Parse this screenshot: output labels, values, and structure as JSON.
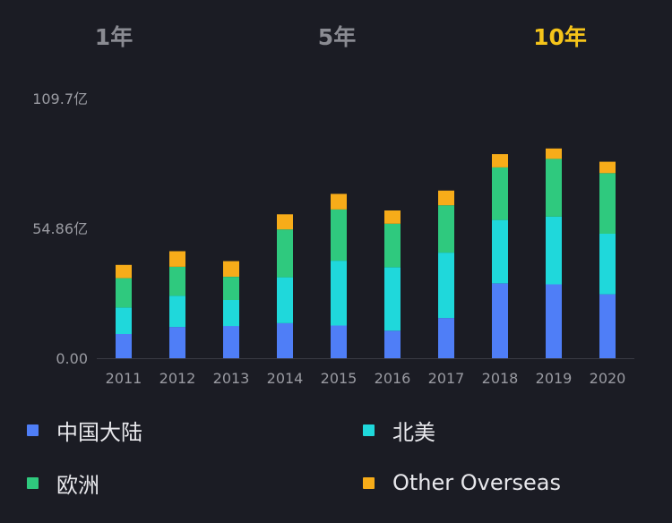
{
  "tabs": [
    {
      "label": "1年",
      "active": false
    },
    {
      "label": "5年",
      "active": false
    },
    {
      "label": "10年",
      "active": true
    }
  ],
  "chart_data": {
    "type": "bar",
    "stacked": true,
    "categories": [
      "2011",
      "2012",
      "2013",
      "2014",
      "2015",
      "2016",
      "2017",
      "2018",
      "2019",
      "2020"
    ],
    "y_ticks": [
      "109.7亿",
      "54.86亿",
      "0.00"
    ],
    "ylim": [
      0,
      109.7
    ],
    "unit": "亿",
    "grid": false,
    "legend_position": "bottom",
    "series": [
      {
        "name": "中国大陆",
        "color": "#4f7ef7",
        "values": [
          10.2,
          13.2,
          13.6,
          14.8,
          13.8,
          11.6,
          17.0,
          31.6,
          31.2,
          27.0
        ]
      },
      {
        "name": "北美",
        "color": "#1fd8db",
        "values": [
          11.2,
          13.2,
          11.0,
          19.4,
          27.4,
          26.8,
          27.6,
          26.8,
          28.6,
          25.6
        ]
      },
      {
        "name": "欧洲",
        "color": "#2fc97e",
        "values": [
          12.4,
          12.2,
          9.8,
          20.2,
          21.6,
          18.4,
          20.0,
          22.2,
          24.4,
          25.6
        ]
      },
      {
        "name": "Other Overseas",
        "color": "#f7ac19",
        "values": [
          5.6,
          6.6,
          6.6,
          6.4,
          6.6,
          5.6,
          6.2,
          5.6,
          4.4,
          4.8
        ]
      }
    ]
  }
}
